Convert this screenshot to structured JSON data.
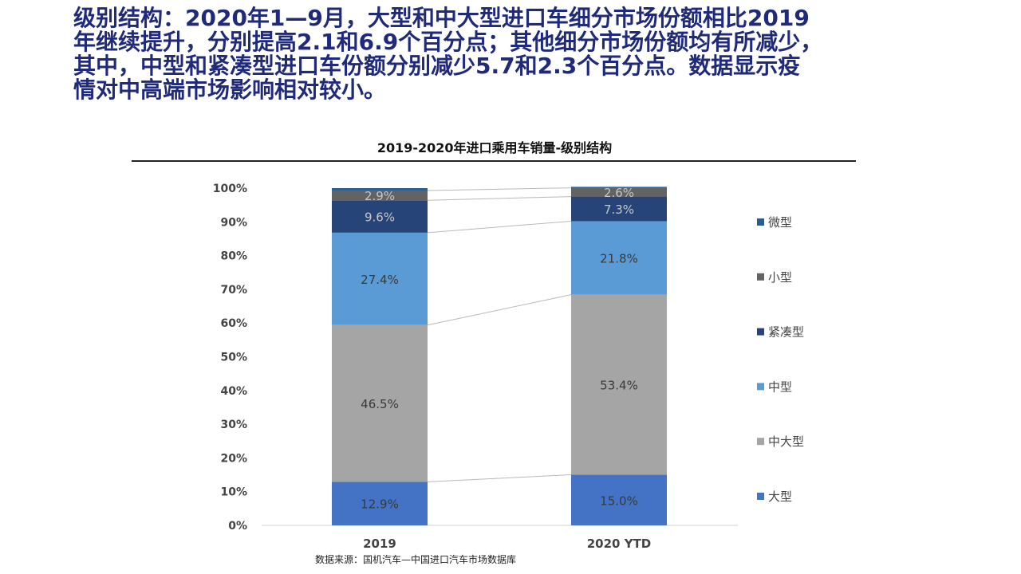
{
  "headline": [
    "级别结构：2020年1—9月，大型和中大型进口车细分市场份额相比2019",
    "年继续提升，分别提高2.1和6.9个百分点；其他细分市场份额均有所减少，",
    "其中，中型和紧凑型进口车份额分别减少5.7和2.3个百分点。数据显示疫",
    "情对中高端市场影响相对较小。"
  ],
  "source": "数据来源：国机汽车—中国进口汽车市场数据库",
  "chart_data": {
    "type": "bar",
    "stacked": true,
    "percent": true,
    "title": "2019-2020年进口乘用车销量-级别结构",
    "categories": [
      "2019",
      "2020 YTD"
    ],
    "ylim": [
      0,
      100
    ],
    "yticks": [
      "0%",
      "10%",
      "20%",
      "30%",
      "40%",
      "50%",
      "60%",
      "70%",
      "80%",
      "90%",
      "100%"
    ],
    "grid": false,
    "legend_position": "right",
    "series": [
      {
        "name": "大型",
        "color": "#4472c4",
        "values": [
          12.9,
          15.0
        ],
        "labels": [
          "12.9%",
          "15.0%"
        ]
      },
      {
        "name": "中大型",
        "color": "#a5a5a5",
        "values": [
          46.5,
          53.4
        ],
        "labels": [
          "46.5%",
          "53.4%"
        ]
      },
      {
        "name": "中型",
        "color": "#5b9bd5",
        "values": [
          27.4,
          21.8
        ],
        "labels": [
          "27.4%",
          "21.8%"
        ]
      },
      {
        "name": "紧凑型",
        "color": "#264478",
        "values": [
          9.6,
          7.3
        ],
        "labels": [
          "9.6%",
          "7.3%"
        ]
      },
      {
        "name": "小型",
        "color": "#636363",
        "values": [
          2.9,
          2.6
        ],
        "labels": [
          "2.9%",
          "2.6%"
        ]
      },
      {
        "name": "微型",
        "color": "#255e91",
        "values": [
          0.7,
          0.3
        ],
        "labels": [
          "",
          ""
        ]
      }
    ]
  }
}
